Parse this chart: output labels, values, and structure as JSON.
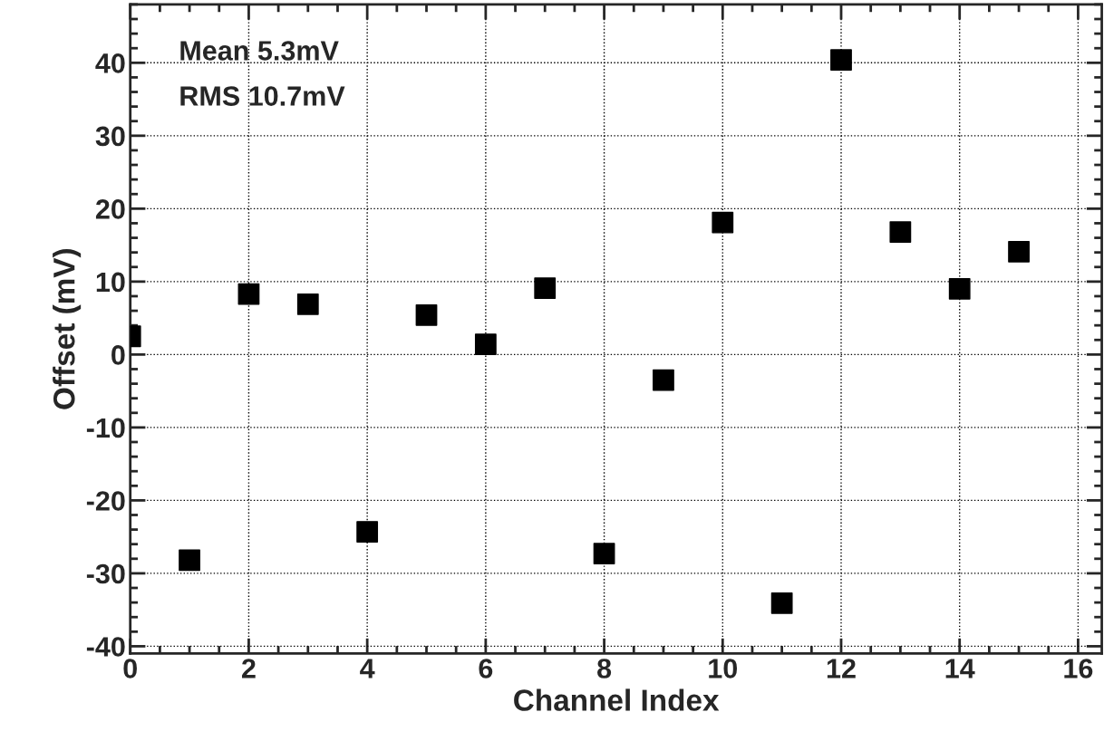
{
  "chart_data": {
    "type": "scatter",
    "xlabel": "Channel Index",
    "ylabel": "Offset (mV)",
    "x": [
      0,
      1,
      2,
      3,
      4,
      5,
      6,
      7,
      8,
      9,
      10,
      11,
      12,
      13,
      14,
      15
    ],
    "series": [
      {
        "color": "#000000",
        "values": [
          2.5,
          -28.2,
          8.3,
          6.9,
          -24.3,
          5.4,
          1.4,
          9.1,
          -27.3,
          -3.5,
          18.1,
          -34.1,
          40.4,
          16.8,
          9.0,
          14.1
        ]
      }
    ],
    "annotations": [
      "Mean 5.3mV",
      "RMS 10.7mV"
    ],
    "xlim": [
      0,
      16.4
    ],
    "ylim": [
      -41,
      48
    ],
    "xticks": [
      0,
      2,
      4,
      6,
      8,
      10,
      12,
      14,
      16
    ],
    "yticks": [
      -40,
      -30,
      -20,
      -10,
      0,
      10,
      20,
      30,
      40
    ],
    "grid": true,
    "marker": "square",
    "legend": false
  }
}
